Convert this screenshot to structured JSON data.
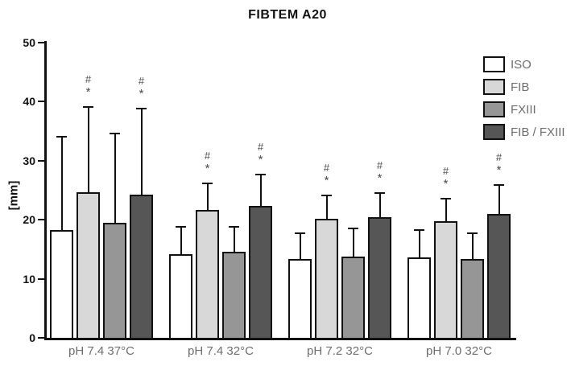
{
  "chart_data": {
    "type": "bar",
    "title": "FIBTEM A20",
    "ylabel": "[mm]",
    "xlabel": "",
    "ylim": [
      0,
      50
    ],
    "yticks": [
      0,
      10,
      20,
      30,
      40,
      50
    ],
    "grid": false,
    "legend_position": "top-right",
    "categories": [
      "pH 7.4 37°C",
      "pH 7.4 32°C",
      "pH 7.2 32°C",
      "pH 7.0 32°C"
    ],
    "series": [
      {
        "name": "ISO",
        "color": "#ffffff",
        "values": [
          18.3,
          14.2,
          13.4,
          13.6
        ],
        "error_top": [
          34.2,
          19.0,
          17.8,
          18.4
        ],
        "markers": []
      },
      {
        "name": "FIB",
        "color": "#d8d8d8",
        "values": [
          24.6,
          21.6,
          20.2,
          19.8
        ],
        "error_top": [
          39.3,
          26.3,
          24.3,
          23.7
        ],
        "markers": [
          "#",
          "*"
        ]
      },
      {
        "name": "FXIII",
        "color": "#969696",
        "values": [
          19.5,
          14.6,
          13.7,
          13.4
        ],
        "error_top": [
          34.8,
          18.9,
          18.7,
          17.9
        ],
        "markers": []
      },
      {
        "name": "FIB / FXIII",
        "color": "#565656",
        "values": [
          24.3,
          22.3,
          20.4,
          21.0
        ],
        "error_top": [
          38.9,
          27.8,
          24.6,
          26.0
        ],
        "markers": [
          "#",
          "*"
        ]
      }
    ],
    "colors": {
      "bar_border": "#111111",
      "axis": "#111111",
      "tick_label": "#111111",
      "category_label": "#6e6e6e",
      "legend_text": "#6e6e6e",
      "marker": "#4a4a4a"
    }
  }
}
